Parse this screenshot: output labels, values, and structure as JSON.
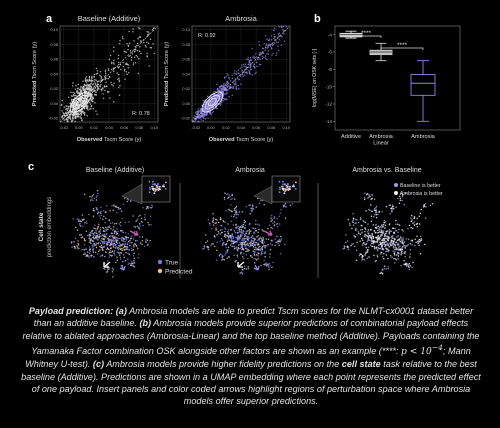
{
  "colors": {
    "background": "#000000",
    "baseline": "#d9d9d9",
    "ambrosia": "#8f86e6",
    "ambrosia_linear": "#c9c9c9",
    "true_points": "#6f7dde",
    "predicted_points": "#f2c08c"
  },
  "panel_a": {
    "letter": "a",
    "left": {
      "title": "Baseline (Additive)",
      "xlabel_bold": "Observed",
      "xlabel_rest": " Tscm Score (y)",
      "ylabel_bold": "Predicted",
      "ylabel_rest": " Tscm Score (y)",
      "r_label": "R: 0.78",
      "xticks": [
        "-0.02",
        "0.00",
        "0.02",
        "0.04",
        "0.06",
        "0.08",
        "0.10"
      ],
      "yticks": [
        "-0.02",
        "0.00",
        "0.02",
        "0.04",
        "0.06",
        "0.08",
        "0.10"
      ]
    },
    "right": {
      "title": "Ambrosia",
      "xlabel_bold": "Observed",
      "xlabel_rest": " Tscm Score (y)",
      "ylabel_bold": "Predicted",
      "ylabel_rest": " Tscm Score (y)",
      "r_label": "R: 0.92",
      "xticks": [
        "-0.02",
        "0.00",
        "0.02",
        "0.04",
        "0.06",
        "0.08",
        "0.10"
      ],
      "yticks": [
        "-0.02",
        "0.00",
        "0.02",
        "0.04",
        "0.06",
        "0.08",
        "0.10"
      ]
    }
  },
  "panel_b": {
    "letter": "b",
    "ylabel": "log(MSE) on OSK sets [-]",
    "significance": [
      "****",
      "****"
    ],
    "yticks": [
      "-4",
      "-6",
      "-8",
      "-10",
      "-12",
      "-14"
    ],
    "categories": [
      "Additive",
      "Ambrosia\nLinear",
      "Ambrosia"
    ],
    "category_lines": [
      [
        "Additive"
      ],
      [
        "Ambrosia",
        "Linear"
      ],
      [
        "Ambrosia"
      ]
    ]
  },
  "panel_c": {
    "letter": "c",
    "titles": [
      "Baseline (Additive)",
      "Ambrosia",
      "Ambrosia vs. Baseline"
    ],
    "ylabel_bold": "Cell state",
    "ylabel_rest": "prediction embeddings",
    "legend_left": [
      "True",
      "Predicted"
    ],
    "legend_right": [
      "Baseline is better",
      "Ambrosia is better"
    ]
  },
  "chart_data": [
    {
      "type": "scatter",
      "title": "Baseline (Additive)",
      "xlabel": "Observed Tscm Score (y)",
      "ylabel": "Predicted Tscm Score (y)",
      "xlim": [
        -0.025,
        0.105
      ],
      "ylim": [
        -0.025,
        0.105
      ],
      "annotation": "R: 0.78",
      "grid": true
    },
    {
      "type": "scatter",
      "title": "Ambrosia",
      "xlabel": "Observed Tscm Score (y)",
      "ylabel": "Predicted Tscm Score (y)",
      "xlim": [
        -0.025,
        0.105
      ],
      "ylim": [
        -0.025,
        0.105
      ],
      "annotation": "R: 0.92",
      "grid": true
    },
    {
      "type": "box",
      "ylabel": "log(MSE) on OSK sets [-]",
      "categories": [
        "Additive",
        "Ambrosia Linear",
        "Ambrosia"
      ],
      "ylim": [
        -15,
        -3
      ],
      "series": [
        {
          "values": {
            "whislo": -4.4,
            "q1": -4.25,
            "median": -4.0,
            "q3": -3.85,
            "whishi": -3.6
          }
        },
        {
          "values": {
            "whislo": -7.0,
            "q1": -6.3,
            "median": -6.0,
            "q3": -5.8,
            "whishi": -5.0
          }
        },
        {
          "values": {
            "whislo": -14.0,
            "q1": -11.0,
            "median": -9.6,
            "q3": -8.6,
            "whishi": -7.0
          }
        }
      ],
      "significance": [
        "****",
        "****"
      ]
    }
  ],
  "caption": {
    "lead": "Payload prediction:",
    "a_label": "(a)",
    "a_text": " Ambrosia models are able to predict Tscm scores for the NLMT-cx0001 dataset better than an additive baseline. ",
    "b_label": "(b)",
    "b_text": " Ambrosia models provide superior predictions of combinatorial payload effects relative to ablated approaches (Ambrosia-Linear) and the top baseline method (Additive). Payloads containing the Yamanaka Factor combination OSK alongside other factors are shown as an example (****: ",
    "math": "p < 10",
    "math_exp": "−4",
    "b_tail": "; Mann Whitney U-test). ",
    "c_label": "(c)",
    "c_text": " Ambrosia models provide higher fidelity predictions on the ",
    "c_bold": "cell state",
    "c_tail": " task relative to the best baseline (Additive). Predictions are shown in a UMAP embedding where each point represents the predicted effect of one payload. Insert panels and color coded arrows highlight regions of perturbation space where Ambrosia models offer superior predictions."
  }
}
